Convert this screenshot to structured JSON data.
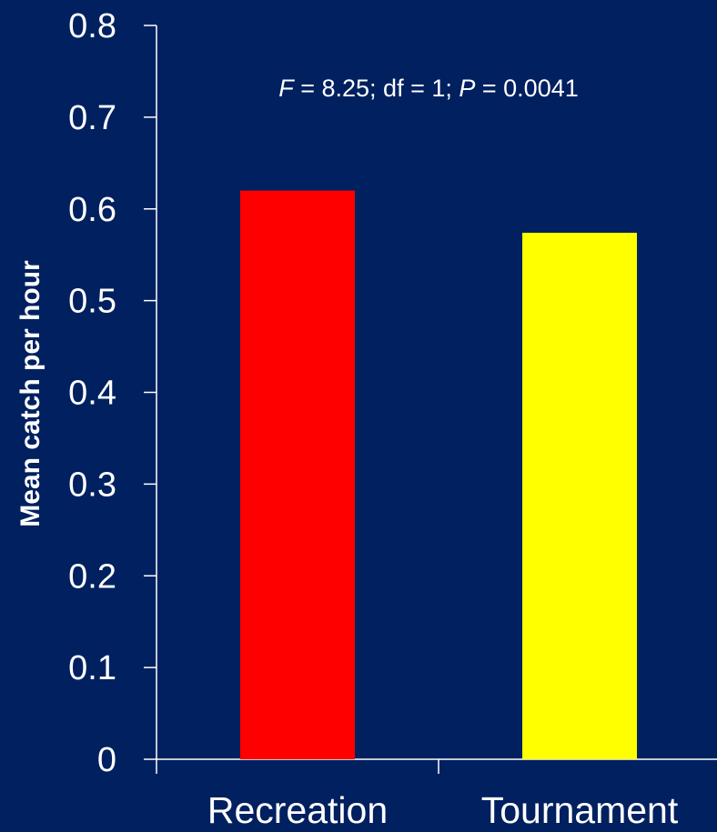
{
  "chart_data": {
    "type": "bar",
    "categories": [
      "Recreation",
      "Tournament"
    ],
    "values": [
      0.62,
      0.574
    ],
    "colors": [
      "#ff0000",
      "#ffff00"
    ],
    "title": "",
    "xlabel": "",
    "ylabel": "Mean catch per hour",
    "ylim": [
      0,
      0.8
    ],
    "yticks": [
      "0",
      "0.1",
      "0.2",
      "0.3",
      "0.4",
      "0.5",
      "0.6",
      "0.7",
      "0.8"
    ],
    "grid": false,
    "legend": "none",
    "annotation": {
      "f_symbol": "F",
      "f_text": " = 8.25; df = 1; ",
      "p_symbol": "P",
      "p_text": " = 0.0041"
    },
    "background": "#002060"
  }
}
